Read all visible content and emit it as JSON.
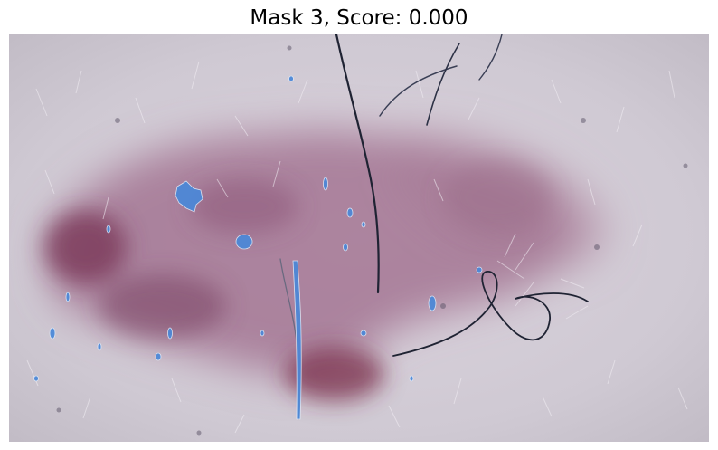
{
  "figure": {
    "title": "Mask 3, Score: 0.000"
  },
  "image": {
    "subject": "dermoscopy-skin-lesion",
    "skin_color": "#d7d2dc",
    "lesion_color": "#8a4a6c",
    "lesion_core_color": "#7a2f4a",
    "hair_color": "#1f2333",
    "mask_color": "#4a88d8"
  }
}
